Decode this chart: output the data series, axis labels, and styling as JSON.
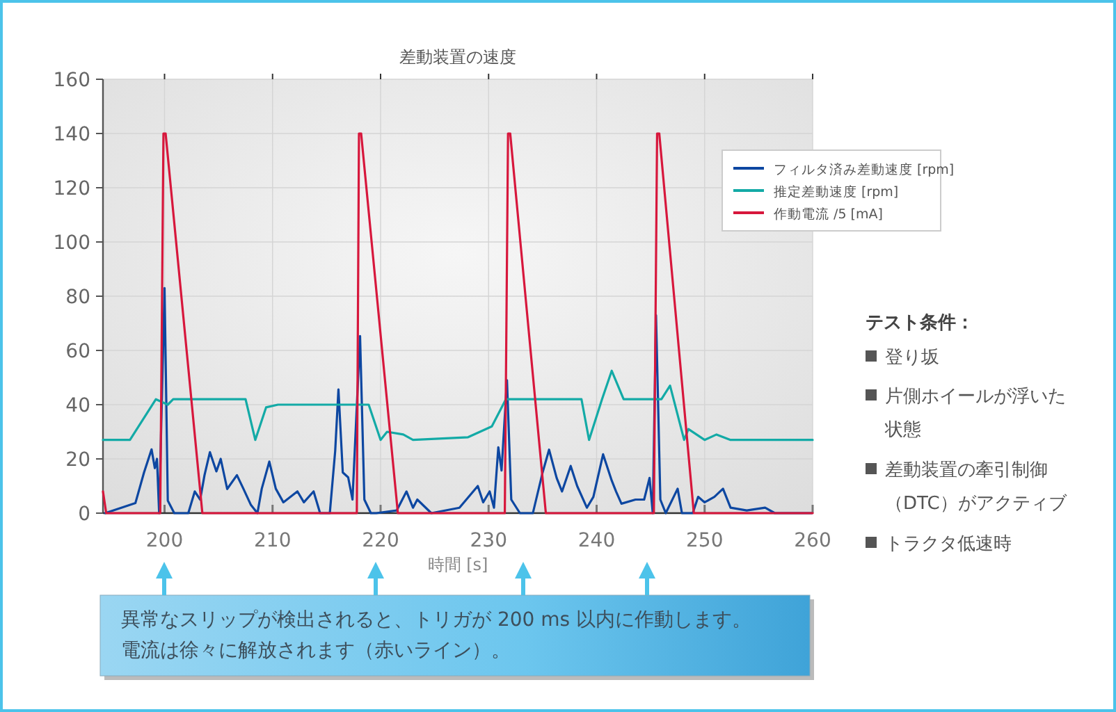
{
  "chart_data": {
    "type": "line",
    "title": "差動装置の速度",
    "xlabel": "時間 [s]",
    "xlim": [
      194.3,
      260
    ],
    "xticks": [
      200,
      210,
      220,
      230,
      240,
      250,
      260
    ],
    "ylim": [
      0,
      160
    ],
    "yticks": [
      0,
      20,
      40,
      60,
      80,
      100,
      120,
      140,
      160
    ],
    "grid": true,
    "legend": "top right",
    "line_style": "solid",
    "marker": "none",
    "series": [
      {
        "name": "フィルタ済み差動速度 [rpm]",
        "color": "#0d47a1",
        "x": [
          194.5,
          196.0,
          197.3,
          198.1,
          198.8,
          199.1,
          199.3,
          199.5,
          200.0,
          200.3,
          200.9,
          202.2,
          202.8,
          203.3,
          203.7,
          204.2,
          204.8,
          205.2,
          205.8,
          206.7,
          207.3,
          208.0,
          208.6,
          209.0,
          209.7,
          210.3,
          211.0,
          212.3,
          212.9,
          213.8,
          214.4,
          215.3,
          215.8,
          216.1,
          216.5,
          217.0,
          217.4,
          218.1,
          218.5,
          219.1,
          219.6,
          221.5,
          222.4,
          223.0,
          223.4,
          224.7,
          227.3,
          229.0,
          229.5,
          230.1,
          230.5,
          230.9,
          231.2,
          231.7,
          232.1,
          232.9,
          234.1,
          235.0,
          235.6,
          236.3,
          236.8,
          237.6,
          238.2,
          239.1,
          239.7,
          240.6,
          241.4,
          241.8,
          242.3,
          243.6,
          244.4,
          244.9,
          245.2,
          245.5,
          245.9,
          246.4,
          247.5,
          247.9,
          248.9,
          249.4,
          250.0,
          250.9,
          251.7,
          252.4,
          253.9,
          255.6,
          256.5,
          259.9
        ],
        "values": [
          0,
          2,
          3.7,
          15,
          23.5,
          16.6,
          20,
          0,
          83,
          4.6,
          0,
          0,
          8,
          5,
          14,
          22.5,
          15.4,
          20,
          8.9,
          14,
          9,
          3,
          0,
          9,
          19,
          9,
          4,
          8,
          4,
          8,
          0,
          0,
          23,
          45.6,
          15,
          13.2,
          5,
          65.3,
          5,
          0,
          0,
          1,
          8,
          2,
          5,
          0,
          2,
          10,
          4,
          8,
          2,
          24.3,
          15.7,
          49,
          5,
          0,
          0,
          15,
          23.4,
          13,
          8,
          17.4,
          10,
          2,
          6,
          21.7,
          12,
          8,
          3.5,
          5,
          5,
          13,
          0,
          73,
          5,
          0,
          9,
          0,
          0,
          6,
          4,
          6,
          9,
          2,
          1,
          2,
          0,
          0
        ]
      },
      {
        "name": "推定差動速度 [rpm]",
        "color": "#13aaa6",
        "x": [
          194.3,
          196.8,
          199.2,
          200.3,
          200.8,
          207.5,
          208.4,
          209.4,
          210.5,
          218.9,
          220.0,
          220.6,
          222.1,
          223.0,
          228.1,
          230.3,
          231.6,
          238.6,
          239.3,
          240.5,
          241.4,
          242.5,
          246.0,
          246.8,
          248.1,
          248.5,
          250.0,
          251.1,
          252.4,
          260.0
        ],
        "values": [
          27,
          27,
          42,
          40,
          42,
          42,
          27,
          39,
          40,
          40,
          27,
          30,
          29,
          27,
          28,
          32,
          42,
          42,
          27,
          42,
          52.5,
          42,
          42,
          47,
          27,
          31,
          27,
          29,
          27,
          27
        ]
      },
      {
        "name": "作動電流 /5 [mA]",
        "color": "#d7173c",
        "x": [
          194.3,
          194.6,
          199.6,
          199.9,
          200.1,
          203.5,
          217.8,
          218.0,
          218.2,
          221.6,
          231.5,
          231.8,
          232.0,
          235.3,
          245.3,
          245.6,
          245.8,
          249.0,
          260.0
        ],
        "values": [
          8,
          0,
          0,
          140,
          140,
          0,
          0,
          140,
          140,
          0,
          0,
          140,
          140,
          0,
          0,
          140,
          140,
          0,
          0
        ]
      }
    ],
    "annotations": [
      "異常なスリップが検出されると、トリガが 200 ms 以内に作動します。電流は徐々に解放されます（赤いライン）。",
      "テスト条件：",
      "登り坂",
      "片側ホイールが浮いた状態",
      "差動装置の牽引制御（DTC）がアクティブ",
      "トラクタ低速時"
    ]
  }
}
